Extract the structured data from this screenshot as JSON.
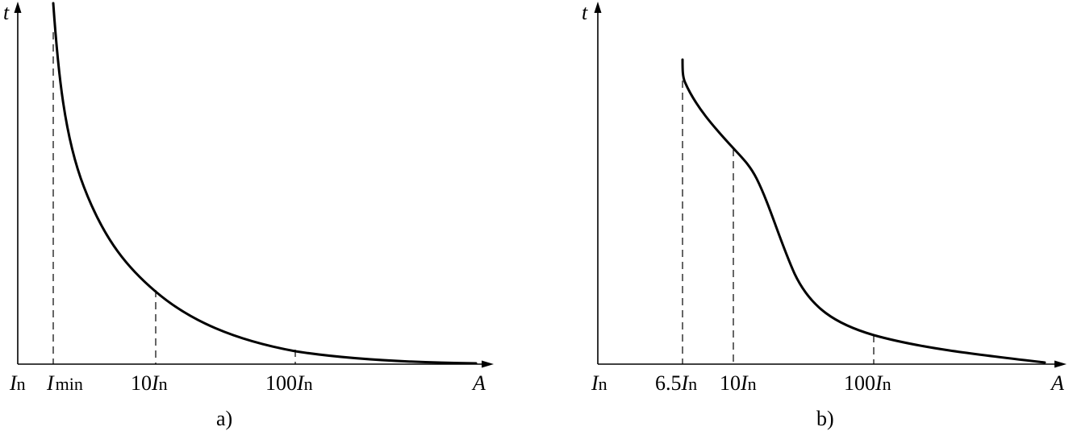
{
  "diagram_a": {
    "y_axis_label": "t",
    "x_axis_label": "A",
    "origin_label": {
      "main": "I",
      "sub": "n"
    },
    "tick_labels": [
      {
        "main": "I",
        "sub": "min",
        "prefix": ""
      },
      {
        "main": "I",
        "sub": "n",
        "prefix": "10"
      },
      {
        "main": "I",
        "sub": "n",
        "prefix": "100"
      }
    ],
    "caption": "a)"
  },
  "diagram_b": {
    "y_axis_label": "t",
    "x_axis_label": "A",
    "origin_label": {
      "main": "I",
      "sub": "n"
    },
    "tick_labels": [
      {
        "main": "I",
        "sub": "n",
        "prefix": "6.5"
      },
      {
        "main": "I",
        "sub": "n",
        "prefix": "10"
      },
      {
        "main": "I",
        "sub": "n",
        "prefix": "100"
      }
    ],
    "caption": "b)"
  }
}
